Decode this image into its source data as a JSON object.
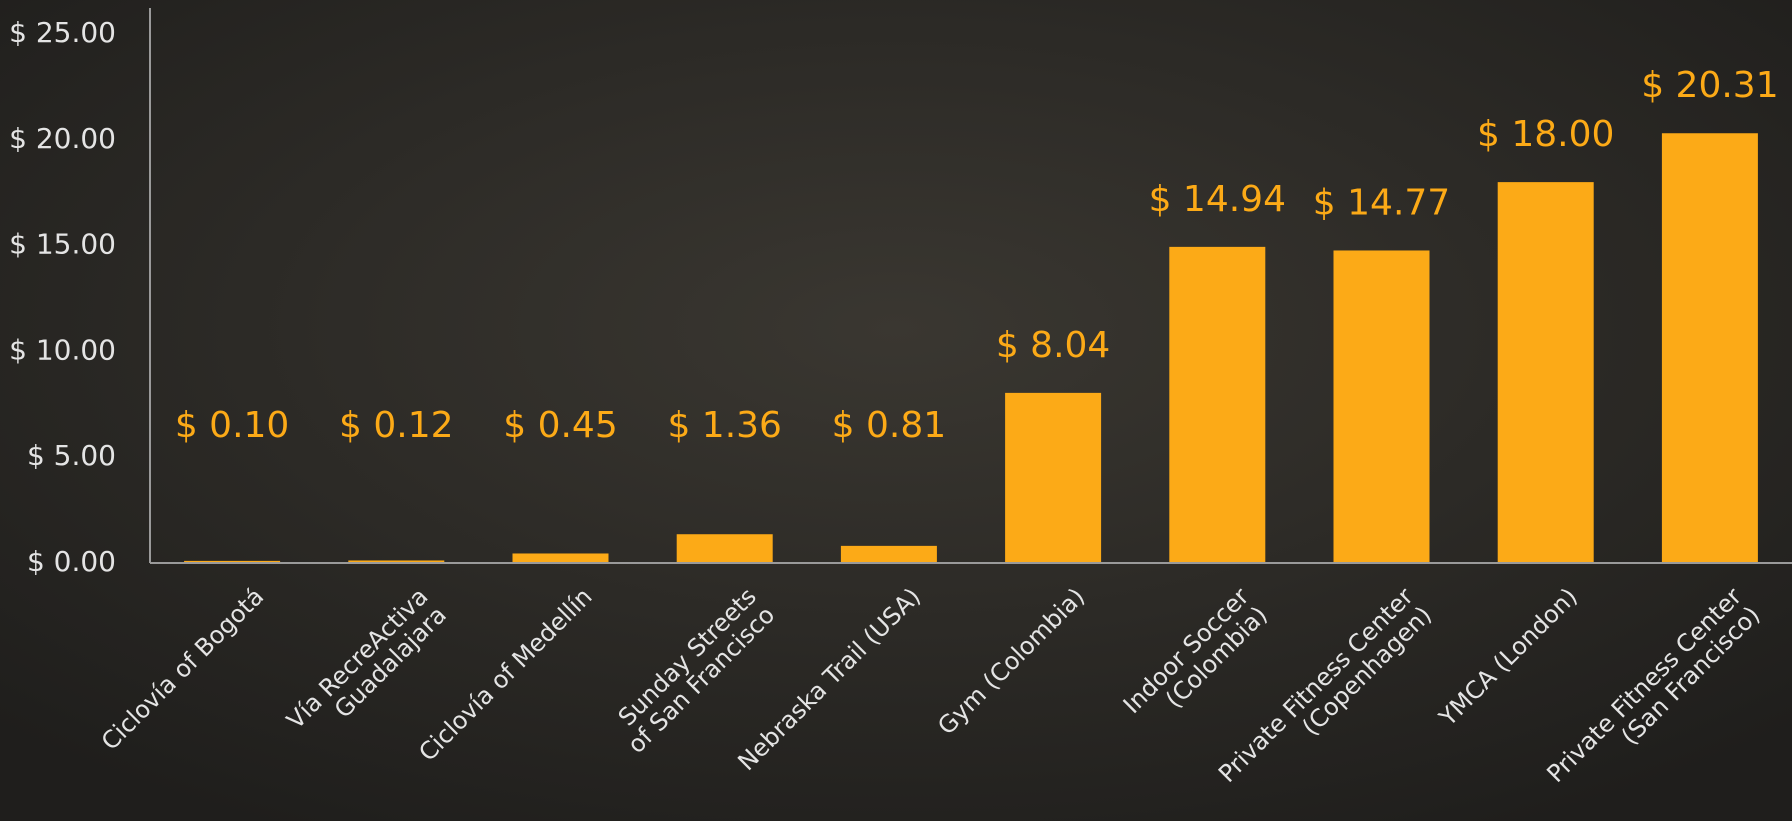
{
  "chart_data": {
    "type": "bar",
    "categories": [
      "Ciclovía of Bogotá",
      "Vía RecreActiva\nGuadalajara",
      "Ciclovía of Medellín",
      "Sunday Streets\nof San Francisco",
      "Nebraska Trail (USA)",
      "Gym (Colombia)",
      "Indoor Soccer\n(Colombia)",
      "Private Fitness Center\n(Copenhagen)",
      "YMCA (London)",
      "Private Fitness Center\n(San Francisco)"
    ],
    "values": [
      0.1,
      0.12,
      0.45,
      1.36,
      0.81,
      8.04,
      14.94,
      14.77,
      18.0,
      20.31
    ],
    "value_labels": [
      "$ 0.10",
      "$ 0.12",
      "$ 0.45",
      "$ 1.36",
      "$ 0.81",
      "$ 8.04",
      "$ 14.94",
      "$ 14.77",
      "$ 18.00",
      "$ 20.31"
    ],
    "color": "#fcaa17",
    "ylim": [
      0,
      25
    ],
    "yticks": [
      {
        "value": 0,
        "label": "$ 0.00"
      },
      {
        "value": 5,
        "label": "$ 5.00"
      },
      {
        "value": 10,
        "label": "$ 10.00"
      },
      {
        "value": 15,
        "label": "$ 15.00"
      },
      {
        "value": 20,
        "label": "$ 20.00"
      },
      {
        "value": 25,
        "label": "$ 25.00"
      }
    ],
    "grid": false
  }
}
